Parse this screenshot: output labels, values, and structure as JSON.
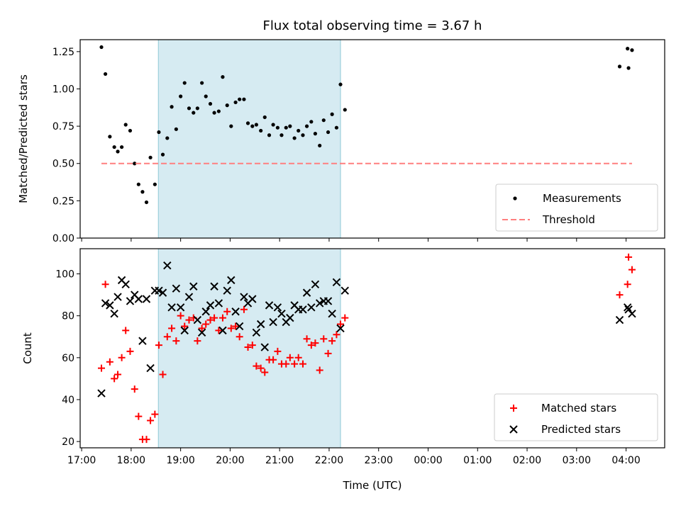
{
  "figure": {
    "title": "Flux total observing time = 3.67 h",
    "xlabel": "Time (UTC)"
  },
  "chart_data": [
    {
      "type": "scatter",
      "panel": "top",
      "ylabel": "Matched/Predicted stars",
      "ylim": [
        0,
        1.33
      ],
      "yticks": [
        0,
        0.25,
        0.5,
        0.75,
        1.0,
        1.25
      ],
      "ytick_labels": [
        "0.00",
        "0.25",
        "0.50",
        "0.75",
        "1.00",
        "1.25"
      ],
      "xlim": [
        16.97,
        28.78
      ],
      "highlight_span": [
        18.55,
        22.23
      ],
      "legend_position": "lower-right",
      "series": [
        {
          "name": "Measurements",
          "kind": "point",
          "color": "#000000",
          "points": [
            [
              17.4,
              1.28
            ],
            [
              17.48,
              1.1
            ],
            [
              17.57,
              0.68
            ],
            [
              17.66,
              0.61
            ],
            [
              17.73,
              0.58
            ],
            [
              17.81,
              0.61
            ],
            [
              17.89,
              0.76
            ],
            [
              17.98,
              0.72
            ],
            [
              18.07,
              0.5
            ],
            [
              18.15,
              0.36
            ],
            [
              18.23,
              0.31
            ],
            [
              18.31,
              0.24
            ],
            [
              18.39,
              0.54
            ],
            [
              18.48,
              0.36
            ],
            [
              18.56,
              0.71
            ],
            [
              18.64,
              0.56
            ],
            [
              18.73,
              0.67
            ],
            [
              18.82,
              0.88
            ],
            [
              18.91,
              0.73
            ],
            [
              19.0,
              0.95
            ],
            [
              19.08,
              1.04
            ],
            [
              19.17,
              0.87
            ],
            [
              19.26,
              0.84
            ],
            [
              19.34,
              0.87
            ],
            [
              19.43,
              1.04
            ],
            [
              19.51,
              0.95
            ],
            [
              19.6,
              0.9
            ],
            [
              19.68,
              0.84
            ],
            [
              19.77,
              0.85
            ],
            [
              19.85,
              1.08
            ],
            [
              19.94,
              0.89
            ],
            [
              20.02,
              0.75
            ],
            [
              20.11,
              0.91
            ],
            [
              20.19,
              0.93
            ],
            [
              20.28,
              0.93
            ],
            [
              20.36,
              0.77
            ],
            [
              20.45,
              0.75
            ],
            [
              20.53,
              0.76
            ],
            [
              20.62,
              0.72
            ],
            [
              20.7,
              0.81
            ],
            [
              20.79,
              0.69
            ],
            [
              20.87,
              0.76
            ],
            [
              20.96,
              0.74
            ],
            [
              21.04,
              0.69
            ],
            [
              21.13,
              0.74
            ],
            [
              21.21,
              0.75
            ],
            [
              21.3,
              0.67
            ],
            [
              21.38,
              0.72
            ],
            [
              21.47,
              0.69
            ],
            [
              21.55,
              0.75
            ],
            [
              21.64,
              0.78
            ],
            [
              21.72,
              0.7
            ],
            [
              21.81,
              0.62
            ],
            [
              21.89,
              0.79
            ],
            [
              21.98,
              0.71
            ],
            [
              22.06,
              0.83
            ],
            [
              22.15,
              0.74
            ],
            [
              22.23,
              1.03
            ],
            [
              22.32,
              0.86
            ],
            [
              27.87,
              1.15
            ],
            [
              28.03,
              1.27
            ],
            [
              28.05,
              1.14
            ],
            [
              28.12,
              1.26
            ]
          ]
        },
        {
          "name": "Threshold",
          "kind": "dashed-line",
          "color": "#ff7f7f",
          "points": [
            [
              17.4,
              0.5
            ],
            [
              28.12,
              0.5
            ]
          ]
        }
      ]
    },
    {
      "type": "scatter",
      "panel": "bottom",
      "ylabel": "Count",
      "ylim": [
        17,
        112
      ],
      "yticks": [
        20,
        40,
        60,
        80,
        100
      ],
      "ytick_labels": [
        "20",
        "40",
        "60",
        "80",
        "100"
      ],
      "xlim": [
        16.97,
        28.78
      ],
      "xticks": [
        17,
        18,
        19,
        20,
        21,
        22,
        23,
        24,
        25,
        26,
        27,
        28
      ],
      "xtick_labels": [
        "17:00",
        "18:00",
        "19:00",
        "20:00",
        "21:00",
        "22:00",
        "23:00",
        "00:00",
        "01:00",
        "02:00",
        "03:00",
        "04:00"
      ],
      "highlight_span": [
        18.55,
        22.23
      ],
      "legend_position": "lower-right",
      "series": [
        {
          "name": "Matched stars",
          "kind": "plus",
          "color": "#ff0000",
          "points": [
            [
              17.4,
              55
            ],
            [
              17.48,
              95
            ],
            [
              17.57,
              58
            ],
            [
              17.66,
              50
            ],
            [
              17.73,
              52
            ],
            [
              17.81,
              60
            ],
            [
              17.89,
              73
            ],
            [
              17.98,
              63
            ],
            [
              18.07,
              45
            ],
            [
              18.15,
              32
            ],
            [
              18.23,
              21
            ],
            [
              18.31,
              21
            ],
            [
              18.39,
              30
            ],
            [
              18.48,
              33
            ],
            [
              18.56,
              66
            ],
            [
              18.64,
              52
            ],
            [
              18.73,
              70
            ],
            [
              18.82,
              74
            ],
            [
              18.91,
              68
            ],
            [
              19.0,
              80
            ],
            [
              19.08,
              75
            ],
            [
              19.17,
              78
            ],
            [
              19.26,
              79
            ],
            [
              19.34,
              68
            ],
            [
              19.43,
              74
            ],
            [
              19.51,
              76
            ],
            [
              19.6,
              78
            ],
            [
              19.68,
              79
            ],
            [
              19.77,
              73
            ],
            [
              19.85,
              79
            ],
            [
              19.94,
              82
            ],
            [
              20.02,
              74
            ],
            [
              20.11,
              75
            ],
            [
              20.19,
              70
            ],
            [
              20.28,
              83
            ],
            [
              20.36,
              65
            ],
            [
              20.45,
              66
            ],
            [
              20.53,
              56
            ],
            [
              20.62,
              55
            ],
            [
              20.7,
              53
            ],
            [
              20.79,
              59
            ],
            [
              20.87,
              59
            ],
            [
              20.96,
              63
            ],
            [
              21.04,
              57
            ],
            [
              21.13,
              57
            ],
            [
              21.21,
              60
            ],
            [
              21.3,
              57
            ],
            [
              21.38,
              60
            ],
            [
              21.47,
              57
            ],
            [
              21.55,
              69
            ],
            [
              21.64,
              66
            ],
            [
              21.72,
              67
            ],
            [
              21.81,
              54
            ],
            [
              21.89,
              69
            ],
            [
              21.98,
              62
            ],
            [
              22.06,
              68
            ],
            [
              22.15,
              71
            ],
            [
              22.23,
              76
            ],
            [
              22.32,
              79
            ],
            [
              27.87,
              90
            ],
            [
              28.03,
              95
            ],
            [
              28.05,
              108
            ],
            [
              28.12,
              102
            ]
          ]
        },
        {
          "name": "Predicted stars",
          "kind": "x",
          "color": "#000000",
          "points": [
            [
              17.4,
              43
            ],
            [
              17.48,
              86
            ],
            [
              17.57,
              85
            ],
            [
              17.66,
              81
            ],
            [
              17.73,
              89
            ],
            [
              17.81,
              97
            ],
            [
              17.89,
              95
            ],
            [
              17.98,
              87
            ],
            [
              18.07,
              90
            ],
            [
              18.15,
              88
            ],
            [
              18.23,
              68
            ],
            [
              18.31,
              88
            ],
            [
              18.39,
              55
            ],
            [
              18.48,
              92
            ],
            [
              18.56,
              92
            ],
            [
              18.64,
              91
            ],
            [
              18.73,
              104
            ],
            [
              18.82,
              84
            ],
            [
              18.91,
              93
            ],
            [
              19.0,
              84
            ],
            [
              19.08,
              73
            ],
            [
              19.17,
              89
            ],
            [
              19.26,
              94
            ],
            [
              19.34,
              78
            ],
            [
              19.43,
              72
            ],
            [
              19.51,
              82
            ],
            [
              19.6,
              85
            ],
            [
              19.68,
              94
            ],
            [
              19.77,
              86
            ],
            [
              19.85,
              73
            ],
            [
              19.94,
              92
            ],
            [
              20.02,
              97
            ],
            [
              20.11,
              82
            ],
            [
              20.19,
              75
            ],
            [
              20.28,
              89
            ],
            [
              20.36,
              86
            ],
            [
              20.45,
              88
            ],
            [
              20.53,
              72
            ],
            [
              20.62,
              76
            ],
            [
              20.7,
              65
            ],
            [
              20.79,
              85
            ],
            [
              20.87,
              77
            ],
            [
              20.96,
              84
            ],
            [
              21.04,
              81
            ],
            [
              21.13,
              77
            ],
            [
              21.21,
              79
            ],
            [
              21.3,
              85
            ],
            [
              21.38,
              83
            ],
            [
              21.47,
              83
            ],
            [
              21.55,
              91
            ],
            [
              21.64,
              84
            ],
            [
              21.72,
              95
            ],
            [
              21.81,
              86
            ],
            [
              21.89,
              87
            ],
            [
              21.98,
              87
            ],
            [
              22.06,
              81
            ],
            [
              22.15,
              96
            ],
            [
              22.23,
              74
            ],
            [
              22.32,
              92
            ],
            [
              27.87,
              78
            ],
            [
              28.03,
              84
            ],
            [
              28.05,
              83
            ],
            [
              28.12,
              81
            ]
          ]
        }
      ]
    }
  ]
}
